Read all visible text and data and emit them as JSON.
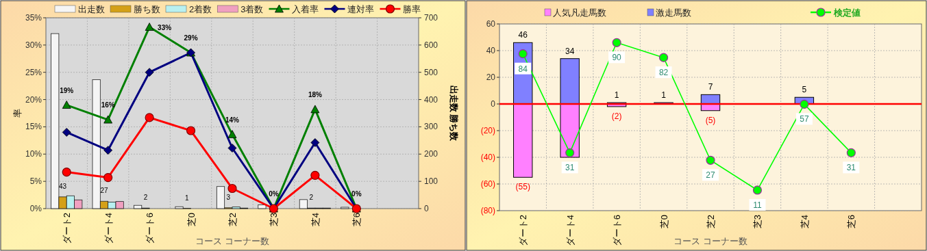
{
  "chart_data": [
    {
      "type": "bar",
      "xlabel": "コース コーナー数",
      "ylabel": "率",
      "y2label": "出走数  勝ち数",
      "categories": [
        "ダート2",
        "ダート4",
        "ダート6",
        "芝0",
        "芝2",
        "芝3",
        "芝4",
        "芝6",
        null
      ],
      "series": [
        {
          "name": "出走数",
          "type": "bar",
          "axis": "y2",
          "color": "#f5f5f5",
          "values": [
            642,
            473,
            12,
            7,
            81,
            14,
            33,
            5,
            null
          ]
        },
        {
          "name": "勝ち数",
          "type": "bar",
          "axis": "y2",
          "color": "#d4a017",
          "values": [
            43,
            27,
            2,
            1,
            3,
            0,
            2,
            0,
            null
          ],
          "value_labels": [
            "43",
            "27",
            "2",
            "1",
            "3",
            null,
            "2",
            null,
            null
          ]
        },
        {
          "name": "2着数",
          "type": "bar",
          "axis": "y2",
          "color": "#b8f0f0",
          "values": [
            47,
            24,
            null,
            null,
            6,
            0,
            2,
            0,
            null
          ]
        },
        {
          "name": "3着数",
          "type": "bar",
          "axis": "y2",
          "color": "#f0a0c0",
          "values": [
            32,
            26,
            null,
            0,
            2,
            0,
            2,
            0,
            null
          ]
        },
        {
          "name": "入着率",
          "type": "line",
          "color": "#008000",
          "marker": "triangle",
          "values": [
            19.0,
            16.3,
            33.3,
            28.6,
            13.6,
            0,
            18.2,
            0,
            null
          ],
          "value_labels": [
            "19%",
            "16%",
            "33%",
            "29%",
            "14%",
            "0%",
            "18%",
            "0%",
            null
          ]
        },
        {
          "name": "連対率",
          "type": "line",
          "color": "#000080",
          "marker": "diamond",
          "values": [
            14.0,
            10.7,
            25.0,
            28.6,
            11.1,
            0,
            12.1,
            0,
            null
          ]
        },
        {
          "name": "勝率",
          "type": "line",
          "color": "#ff0000",
          "marker": "circle",
          "values": [
            6.7,
            5.7,
            16.7,
            14.3,
            3.7,
            0,
            6.1,
            0,
            null
          ]
        }
      ],
      "ylim": [
        0,
        35
      ],
      "yticks": [
        {
          "value": 0,
          "label": "0%"
        },
        {
          "value": 5,
          "label": "5%"
        },
        {
          "value": 10,
          "label": "10%"
        },
        {
          "value": 15,
          "label": "15%"
        },
        {
          "value": 20,
          "label": "20%"
        },
        {
          "value": 25,
          "label": "25%"
        },
        {
          "value": 30,
          "label": "30%"
        },
        {
          "value": 35,
          "label": "35%"
        }
      ],
      "y2lim": [
        0,
        700
      ],
      "y2ticks": [
        0,
        100,
        200,
        300,
        400,
        500,
        600,
        700
      ],
      "grid": true,
      "legend": "top"
    },
    {
      "type": "bar",
      "stacked": true,
      "xlabel": "コース コーナー数",
      "categories": [
        "ダート2",
        "ダート4",
        "ダート6",
        "芝0",
        "芝2",
        "芝3",
        "芝4",
        "芝6",
        null
      ],
      "series": [
        {
          "name": "人気凡走馬数",
          "color": "#ff80ff",
          "values": [
            -55,
            -40,
            -2,
            0,
            -5,
            0,
            0,
            0,
            null
          ],
          "value_labels": [
            "(55)",
            null,
            "(2)",
            null,
            "(5)",
            null,
            null,
            null,
            null
          ]
        },
        {
          "name": "激走馬数",
          "color": "#8080ff",
          "values": [
            46,
            34,
            1,
            1,
            7,
            0,
            5,
            0,
            null
          ],
          "value_labels": [
            "46",
            "34",
            "1",
            "1",
            "7",
            null,
            "5",
            null,
            null
          ]
        },
        {
          "name": "検定値",
          "type": "line",
          "axis": "y2",
          "color": "#00ff00",
          "marker": "circle",
          "values": [
            84,
            31,
            90,
            82,
            27,
            11,
            57,
            31,
            null
          ],
          "value_labels": [
            "84",
            "31",
            "90",
            "82",
            "27",
            "11",
            "57",
            "31",
            null
          ]
        }
      ],
      "ylim": [
        -80,
        60
      ],
      "yticks": [
        {
          "value": -80,
          "label": "(80)"
        },
        {
          "value": -60,
          "label": "(60)"
        },
        {
          "value": -40,
          "label": "(40)"
        },
        {
          "value": -20,
          "label": "(20)"
        },
        0,
        20,
        40,
        60
      ],
      "y2lim": [
        0,
        100
      ],
      "ref_lines": [
        {
          "axis": "y",
          "value": 0,
          "color": "#ff0000"
        }
      ],
      "grid": true,
      "legend": "top"
    }
  ]
}
